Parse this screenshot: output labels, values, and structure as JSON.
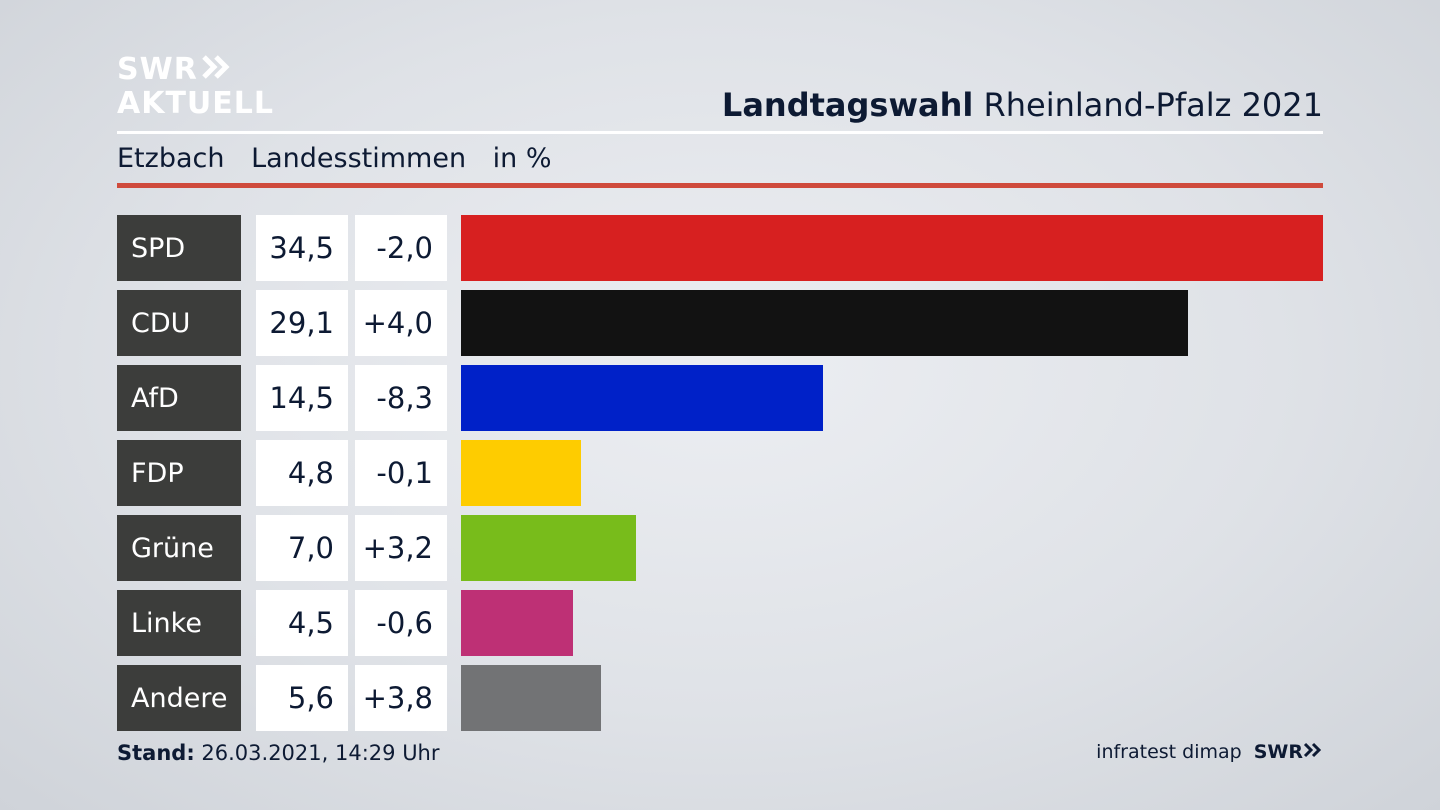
{
  "header": {
    "logo_line1": "SWR",
    "logo_line2": "AKTUELL",
    "title_bold": "Landtagswahl",
    "title_rest": "Rheinland-Pfalz 2021",
    "location": "Etzbach",
    "measure": "Landesstimmen",
    "unit": "in %"
  },
  "chart_data": {
    "type": "bar",
    "orientation": "horizontal",
    "title": "Landtagswahl Rheinland-Pfalz 2021",
    "subtitle": "Etzbach Landesstimmen in %",
    "xlim": [
      0,
      34.5
    ],
    "categories": [
      "SPD",
      "CDU",
      "AfD",
      "FDP",
      "Grüne",
      "Linke",
      "Andere"
    ],
    "values": [
      34.5,
      29.1,
      14.5,
      4.8,
      7.0,
      4.5,
      5.6
    ],
    "value_labels": [
      "34,5",
      "29,1",
      "14,5",
      "4,8",
      "7,0",
      "4,5",
      "5,6"
    ],
    "diff_labels": [
      "-2,0",
      "+4,0",
      "-8,3",
      "-0,1",
      "+3,2",
      "-0,6",
      "+3,8"
    ],
    "colors": [
      "#d72020",
      "#121212",
      "#0021c8",
      "#fecc00",
      "#78bc1b",
      "#be3075",
      "#727375"
    ]
  },
  "footer": {
    "stand_label": "Stand:",
    "stand_value": "26.03.2021, 14:29 Uhr",
    "source": "infratest dimap",
    "brand": "SWR"
  }
}
